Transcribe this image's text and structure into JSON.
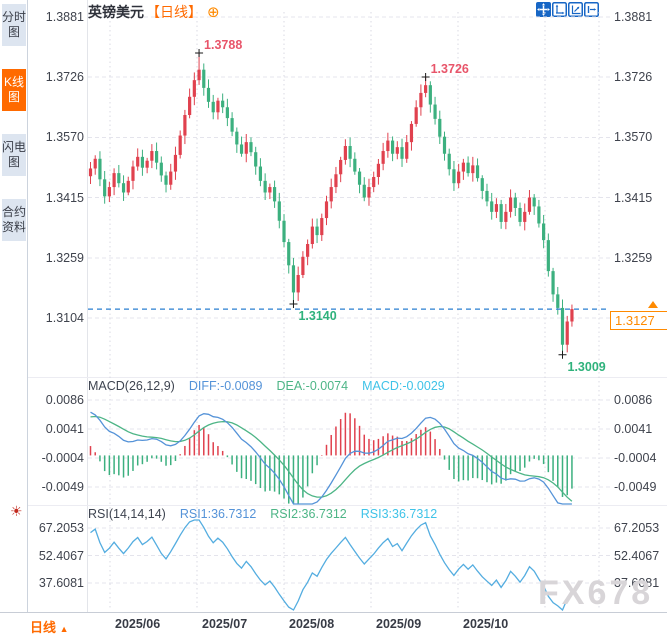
{
  "header": {
    "title": "英镑美元",
    "period_tag": "【日线】",
    "plus_icon": "⊕",
    "toolbar_icons": [
      "move-icon",
      "fit-chart-icon",
      "axis-scale-icon",
      "pan-right-icon"
    ]
  },
  "sidebar": {
    "tabs": [
      {
        "name": "tab-time-share",
        "label": "分时图",
        "active": false
      },
      {
        "name": "tab-kline",
        "label": "K线图",
        "active": true
      },
      {
        "name": "tab-lightning",
        "label": "闪电图",
        "active": false
      },
      {
        "name": "tab-contract-info",
        "label": "合约资料",
        "active": false
      }
    ],
    "sun_icon": "☀"
  },
  "bottom_bar": {
    "period_label": "日线",
    "period_arrow": "▲",
    "dates": [
      "2025/06",
      "2025/07",
      "2025/08",
      "2025/09",
      "2025/10"
    ]
  },
  "watermark": {
    "text": "FX678"
  },
  "colors": {
    "up_candle": "#e0414e",
    "down_candle": "#3cb07f",
    "marker_red": "#e8556a",
    "marker_green": "#2fb27c",
    "diff_line": "#5593d8",
    "dea_line": "#4db586",
    "macd_value_text": "#3fc3e8",
    "rsi_line": "#54ade0",
    "current_price_line": "#2a7fd0",
    "accent_orange": "#ff6a00",
    "price_box_orange": "#ff8a00",
    "toolbar_blue": "#1766c5",
    "grid_h": "#e4e4ec",
    "grid_v": "#d9d9e3",
    "axis_text": "#3f434d",
    "header_text": "#3e4450"
  },
  "chart_data": {
    "type": "candlestick",
    "title": "英镑美元 日线 (GBP/USD daily)",
    "convention": "red = up candle, green = down candle",
    "price_axis": {
      "ticks": [
        "1.3881",
        "1.3726",
        "1.3570",
        "1.3415",
        "1.3259",
        "1.3104"
      ],
      "top": 1.3881,
      "bottom": 1.3104
    },
    "x_axis": {
      "tick_labels": [
        "2025/06",
        "2025/07",
        "2025/08",
        "2025/09",
        "2025/10"
      ]
    },
    "closes": [
      1.349,
      1.3515,
      1.3462,
      1.3418,
      1.3442,
      1.3478,
      1.3452,
      1.3428,
      1.3458,
      1.3495,
      1.352,
      1.3492,
      1.351,
      1.3535,
      1.3505,
      1.3472,
      1.3448,
      1.3482,
      1.3525,
      1.3575,
      1.3628,
      1.3675,
      1.3718,
      1.3745,
      1.3698,
      1.3662,
      1.3635,
      1.3665,
      1.3648,
      1.362,
      1.3585,
      1.3552,
      1.3528,
      1.3558,
      1.3532,
      1.3495,
      1.3458,
      1.3428,
      1.3442,
      1.3405,
      1.3355,
      1.33,
      1.324,
      1.317,
      1.3215,
      1.3262,
      1.3295,
      1.334,
      1.3318,
      1.3362,
      1.3405,
      1.3442,
      1.3475,
      1.3512,
      1.3548,
      1.3515,
      1.3482,
      1.3448,
      1.3415,
      1.3442,
      1.3468,
      1.3502,
      1.3535,
      1.3562,
      1.3528,
      1.3545,
      1.3515,
      1.3558,
      1.3605,
      1.3648,
      1.3685,
      1.3705,
      1.3655,
      1.3618,
      1.3572,
      1.3528,
      1.3488,
      1.3452,
      1.3482,
      1.3505,
      1.3478,
      1.3498,
      1.3465,
      1.3432,
      1.3405,
      1.3378,
      1.3398,
      1.3352,
      1.3378,
      1.3415,
      1.3388,
      1.3352,
      1.3378,
      1.3415,
      1.3392,
      1.3348,
      1.3305,
      1.3225,
      1.3165,
      1.313,
      1.3035,
      1.3095,
      1.3127
    ],
    "markers": [
      {
        "index": 23,
        "type": "high",
        "price": 1.3788,
        "label": "1.3788"
      },
      {
        "index": 71,
        "type": "high",
        "price": 1.3726,
        "label": "1.3726"
      },
      {
        "index": 43,
        "type": "low",
        "price": 1.314,
        "label": "1.3140"
      },
      {
        "index": 100,
        "type": "low",
        "price": 1.3009,
        "label": "1.3009"
      }
    ],
    "current_price": {
      "value": 1.3127,
      "label": "1.3127"
    },
    "macd": {
      "params_label": "MACD(26,12,9)",
      "diff_label": "DIFF:-0.0089",
      "dea_label": "DEA:-0.0074",
      "macd_label": "MACD:-0.0029",
      "ticks": [
        "0.0086",
        "0.0041",
        "-0.0004",
        "-0.0049"
      ]
    },
    "rsi": {
      "params_label": "RSI(14,14,14)",
      "rsi1_label": "RSI1:36.7312",
      "rsi2_label": "RSI2:36.7312",
      "rsi3_label": "RSI3:36.7312",
      "ticks": [
        "67.2053",
        "52.4067",
        "37.6081"
      ]
    }
  }
}
